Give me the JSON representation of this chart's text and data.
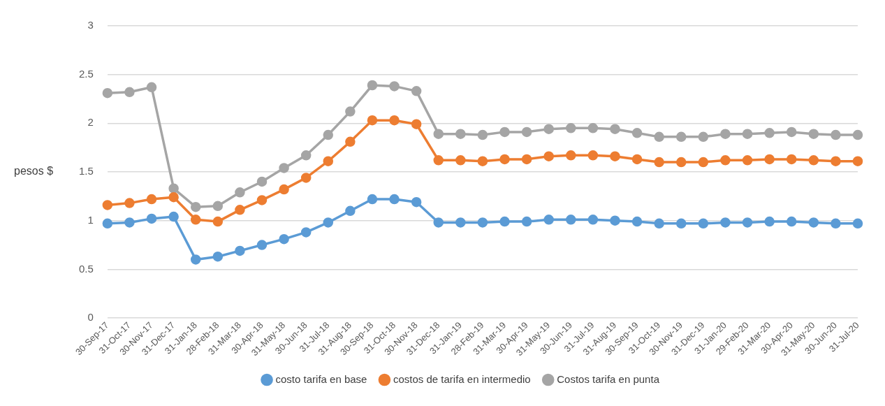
{
  "chart_data": {
    "type": "line",
    "ylabel": "pesos $",
    "categories": [
      "30-Sep-17",
      "31-Oct-17",
      "30-Nov-17",
      "31-Dec-17",
      "31-Jan-18",
      "28-Feb-18",
      "31-Mar-18",
      "30-Apr-18",
      "31-May-18",
      "30-Jun-18",
      "31-Jul-18",
      "31-Aug-18",
      "30-Sep-18",
      "31-Oct-18",
      "30-Nov-18",
      "31-Dec-18",
      "31-Jan-19",
      "28-Feb-19",
      "31-Mar-19",
      "30-Apr-19",
      "31-May-19",
      "30-Jun-19",
      "31-Jul-19",
      "31-Aug-19",
      "30-Sep-19",
      "31-Oct-19",
      "30-Nov-19",
      "31-Dec-19",
      "31-Jan-20",
      "29-Feb-20",
      "31-Mar-20",
      "30-Apr-20",
      "31-May-20",
      "30-Jun-20",
      "31-Jul-20"
    ],
    "series": [
      {
        "name": "costo tarifa en base",
        "color": "#5b9bd5",
        "values": [
          0.97,
          0.98,
          1.02,
          1.04,
          0.6,
          0.63,
          0.69,
          0.75,
          0.81,
          0.88,
          0.98,
          1.1,
          1.22,
          1.22,
          1.19,
          0.98,
          0.98,
          0.98,
          0.99,
          0.99,
          1.01,
          1.01,
          1.01,
          1.0,
          0.99,
          0.97,
          0.97,
          0.97,
          0.98,
          0.98,
          0.99,
          0.99,
          0.98,
          0.97,
          0.97
        ]
      },
      {
        "name": "costos de tarifa en intermedio",
        "color": "#ed7d31",
        "values": [
          1.16,
          1.18,
          1.22,
          1.24,
          1.01,
          0.99,
          1.11,
          1.21,
          1.32,
          1.44,
          1.61,
          1.81,
          2.03,
          2.03,
          1.99,
          1.62,
          1.62,
          1.61,
          1.63,
          1.63,
          1.66,
          1.67,
          1.67,
          1.66,
          1.63,
          1.6,
          1.6,
          1.6,
          1.62,
          1.62,
          1.63,
          1.63,
          1.62,
          1.61,
          1.61
        ]
      },
      {
        "name": "Costos tarifa en punta",
        "color": "#a5a5a5",
        "values": [
          2.31,
          2.32,
          2.37,
          1.33,
          1.14,
          1.15,
          1.29,
          1.4,
          1.54,
          1.67,
          1.88,
          2.12,
          2.39,
          2.38,
          2.33,
          1.89,
          1.89,
          1.88,
          1.91,
          1.91,
          1.94,
          1.95,
          1.95,
          1.94,
          1.9,
          1.86,
          1.86,
          1.86,
          1.89,
          1.89,
          1.9,
          1.91,
          1.89,
          1.88,
          1.88
        ]
      }
    ],
    "ylim": [
      0,
      3
    ],
    "yticks": [
      0,
      0.5,
      1,
      1.5,
      2,
      2.5,
      3
    ],
    "grid": "y",
    "legend": "bottom",
    "marker": "circle",
    "line_style": "solid"
  }
}
